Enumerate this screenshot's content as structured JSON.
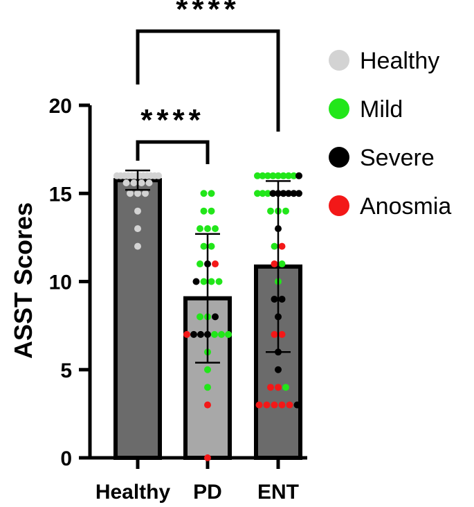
{
  "chart_data": {
    "type": "bar",
    "ylabel": "ASST Scores",
    "xlabel": "",
    "ylim": [
      0,
      20
    ],
    "yticks": [
      0,
      5,
      10,
      15,
      20
    ],
    "categories": [
      "Healthy",
      "PD",
      "ENT"
    ],
    "bars": [
      {
        "category": "Healthy",
        "mean": 15.75,
        "error_low": 15.2,
        "error_high": 16.3,
        "fill": "#6b6b6b"
      },
      {
        "category": "PD",
        "mean": 9.05,
        "error_low": 5.4,
        "error_high": 12.7,
        "fill": "#a8a8a8"
      },
      {
        "category": "ENT",
        "mean": 10.85,
        "error_low": 6.0,
        "error_high": 15.7,
        "fill": "#6b6b6b"
      }
    ],
    "legend": [
      {
        "label": "Healthy",
        "color": "#d3d3d3"
      },
      {
        "label": "Mild",
        "color": "#22e61a"
      },
      {
        "label": "Severe",
        "color": "#000000"
      },
      {
        "label": "Anosmia",
        "color": "#f31818"
      }
    ],
    "significance": [
      {
        "from": "Healthy",
        "to": "PD",
        "label": "****"
      },
      {
        "from": "Healthy",
        "to": "ENT",
        "label": "****"
      }
    ],
    "points": {
      "Healthy": [
        {
          "y": 16,
          "group": "Healthy",
          "count": 12
        },
        {
          "y": 15.6,
          "group": "Healthy",
          "count": 4
        },
        {
          "y": 15,
          "group": "Healthy",
          "count": 3
        },
        {
          "y": 14,
          "group": "Healthy",
          "count": 1
        },
        {
          "y": 13,
          "group": "Healthy",
          "count": 1
        },
        {
          "y": 12,
          "group": "Healthy",
          "count": 1
        }
      ],
      "PD": [
        {
          "y": 15,
          "group": "Mild",
          "count": 2
        },
        {
          "y": 14,
          "group": "Mild",
          "count": 2
        },
        {
          "y": 13,
          "group": "Mild",
          "count": 3
        },
        {
          "y": 12,
          "group": "Mild",
          "count": 2
        },
        {
          "y": 11,
          "group": "Mild",
          "count": 1
        },
        {
          "y": 11,
          "group": "Severe",
          "count": 1
        },
        {
          "y": 11,
          "group": "Anosmia",
          "count": 1
        },
        {
          "y": 10,
          "group": "Severe",
          "count": 1
        },
        {
          "y": 10,
          "group": "Mild",
          "count": 3
        },
        {
          "y": 8,
          "group": "Mild",
          "count": 2
        },
        {
          "y": 8,
          "group": "Severe",
          "count": 1
        },
        {
          "y": 7,
          "group": "Anosmia",
          "count": 1
        },
        {
          "y": 7,
          "group": "Severe",
          "count": 3
        },
        {
          "y": 7,
          "group": "Mild",
          "count": 3
        },
        {
          "y": 6,
          "group": "Mild",
          "count": 1
        },
        {
          "y": 5,
          "group": "Mild",
          "count": 1
        },
        {
          "y": 4,
          "group": "Mild",
          "count": 1
        },
        {
          "y": 3,
          "group": "Anosmia",
          "count": 1
        },
        {
          "y": 0,
          "group": "Anosmia",
          "count": 1
        }
      ],
      "ENT": [
        {
          "y": 16,
          "group": "Mild",
          "count": 8
        },
        {
          "y": 16,
          "group": "Severe",
          "count": 1
        },
        {
          "y": 15,
          "group": "Mild",
          "count": 3
        },
        {
          "y": 15,
          "group": "Severe",
          "count": 6
        },
        {
          "y": 14,
          "group": "Mild",
          "count": 3
        },
        {
          "y": 13,
          "group": "Severe",
          "count": 1
        },
        {
          "y": 12,
          "group": "Mild",
          "count": 1
        },
        {
          "y": 12,
          "group": "Anosmia",
          "count": 1
        },
        {
          "y": 11,
          "group": "Anosmia",
          "count": 1
        },
        {
          "y": 11,
          "group": "Mild",
          "count": 1
        },
        {
          "y": 10,
          "group": "Mild",
          "count": 1
        },
        {
          "y": 9,
          "group": "Severe",
          "count": 2
        },
        {
          "y": 8,
          "group": "Severe",
          "count": 1
        },
        {
          "y": 7,
          "group": "Anosmia",
          "count": 2
        },
        {
          "y": 6,
          "group": "Severe",
          "count": 1
        },
        {
          "y": 5,
          "group": "Severe",
          "count": 1
        },
        {
          "y": 4,
          "group": "Anosmia",
          "count": 2
        },
        {
          "y": 4,
          "group": "Mild",
          "count": 1
        },
        {
          "y": 3,
          "group": "Anosmia",
          "count": 5
        },
        {
          "y": 3,
          "group": "Severe",
          "count": 1
        }
      ]
    }
  }
}
